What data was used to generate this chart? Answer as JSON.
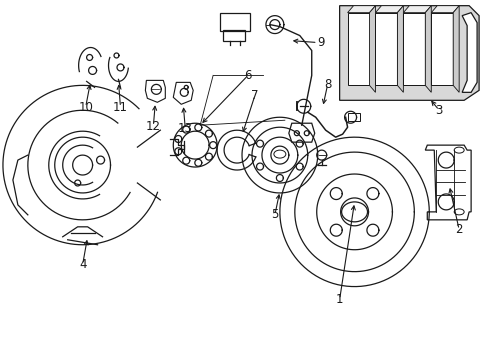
{
  "background": "#ffffff",
  "line_color": "#1a1a1a",
  "lw": 0.9,
  "fs": 8.5,
  "figw": 4.89,
  "figh": 3.6,
  "dpi": 100
}
